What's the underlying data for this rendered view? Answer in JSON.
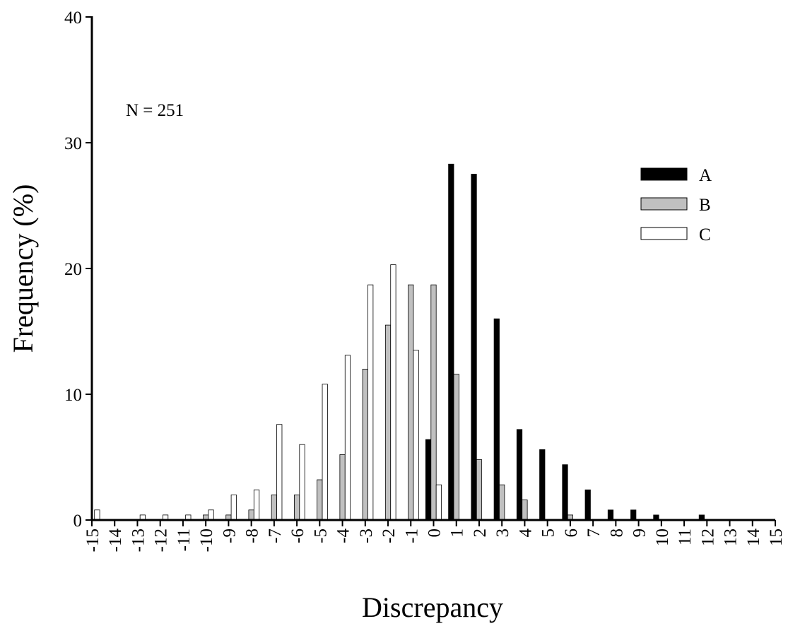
{
  "chart_data": {
    "type": "bar",
    "title": "",
    "xlabel": "Discrepancy",
    "ylabel": "Frequency (%)",
    "ylim": [
      0,
      40
    ],
    "yticks": [
      "0",
      "10",
      "20",
      "30",
      "40"
    ],
    "grid": false,
    "legend_position": "top-right",
    "annotation": "N = 251",
    "categories": [
      "-15",
      "-14",
      "-13",
      "-12",
      "-11",
      "-10",
      "-9",
      "-8",
      "-7",
      "-6",
      "-5",
      "-4",
      "-3",
      "-2",
      "-1",
      "0",
      "1",
      "2",
      "3",
      "4",
      "5",
      "6",
      "7",
      "8",
      "9",
      "10",
      "11",
      "12",
      "13",
      "14",
      "15"
    ],
    "series": [
      {
        "name": "A",
        "color": "#000000",
        "values": [
          0,
          0,
          0,
          0,
          0,
          0,
          0,
          0,
          0,
          0,
          0,
          0,
          0,
          0,
          0,
          6.4,
          28.3,
          27.5,
          16.0,
          7.2,
          5.6,
          4.4,
          2.4,
          0.8,
          0.8,
          0.4,
          0,
          0.4,
          0,
          0,
          0
        ]
      },
      {
        "name": "B",
        "color": "#c0c0c0",
        "values": [
          0,
          0,
          0,
          0,
          0,
          0.4,
          0.4,
          0.8,
          2.0,
          2.0,
          3.2,
          5.2,
          12.0,
          15.5,
          18.7,
          18.7,
          11.6,
          4.8,
          2.8,
          1.6,
          0,
          0.4,
          0,
          0,
          0,
          0,
          0,
          0,
          0,
          0,
          0
        ]
      },
      {
        "name": "C",
        "color": "#ffffff",
        "values": [
          0.8,
          0,
          0.4,
          0.4,
          0.4,
          0.8,
          2.0,
          2.4,
          7.6,
          6.0,
          10.8,
          13.1,
          18.7,
          20.3,
          13.5,
          2.8,
          0,
          0,
          0,
          0,
          0,
          0,
          0,
          0,
          0,
          0,
          0,
          0,
          0,
          0,
          0
        ]
      }
    ]
  }
}
